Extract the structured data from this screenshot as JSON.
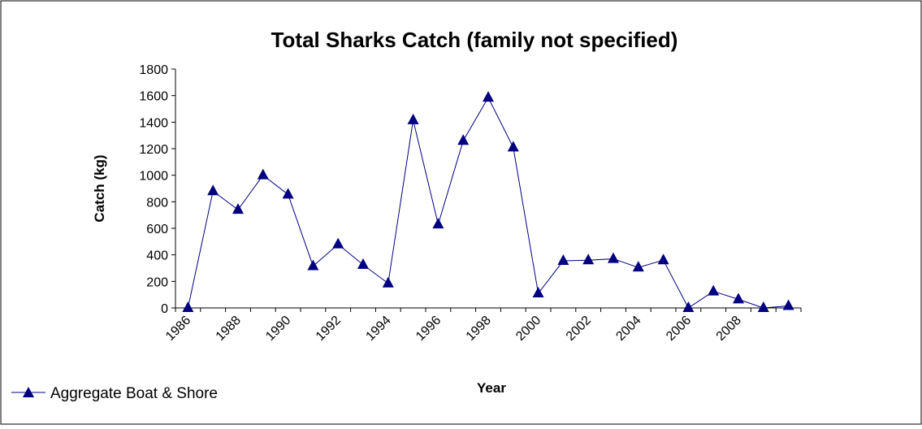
{
  "chart_data": {
    "type": "line",
    "title": "Total Sharks Catch (family not specified)",
    "xlabel": "Year",
    "ylabel": "Catch (kg)",
    "ylim": [
      0,
      1800
    ],
    "yticks": [
      0,
      200,
      400,
      600,
      800,
      1000,
      1200,
      1400,
      1600,
      1800
    ],
    "xtick_labels": [
      "1986",
      "1988",
      "1990",
      "1992",
      "1994",
      "1996",
      "1998",
      "2000",
      "2002",
      "2004",
      "2006",
      "2008"
    ],
    "x": [
      1986,
      1987,
      1988,
      1989,
      1990,
      1991,
      1992,
      1993,
      1994,
      1995,
      1996,
      1997,
      1998,
      1999,
      2000,
      2001,
      2002,
      2003,
      2004,
      2005,
      2006,
      2007,
      2008,
      2009,
      2010
    ],
    "series": [
      {
        "name": "Aggregate Boat & Shore",
        "color": "#000080",
        "marker": "triangle",
        "values": [
          0,
          880,
          740,
          1000,
          855,
          315,
          480,
          325,
          185,
          1415,
          630,
          1260,
          1585,
          1210,
          110,
          355,
          360,
          370,
          305,
          360,
          0,
          125,
          65,
          0,
          15
        ]
      }
    ],
    "grid": false,
    "legend_position": "bottom-left"
  }
}
